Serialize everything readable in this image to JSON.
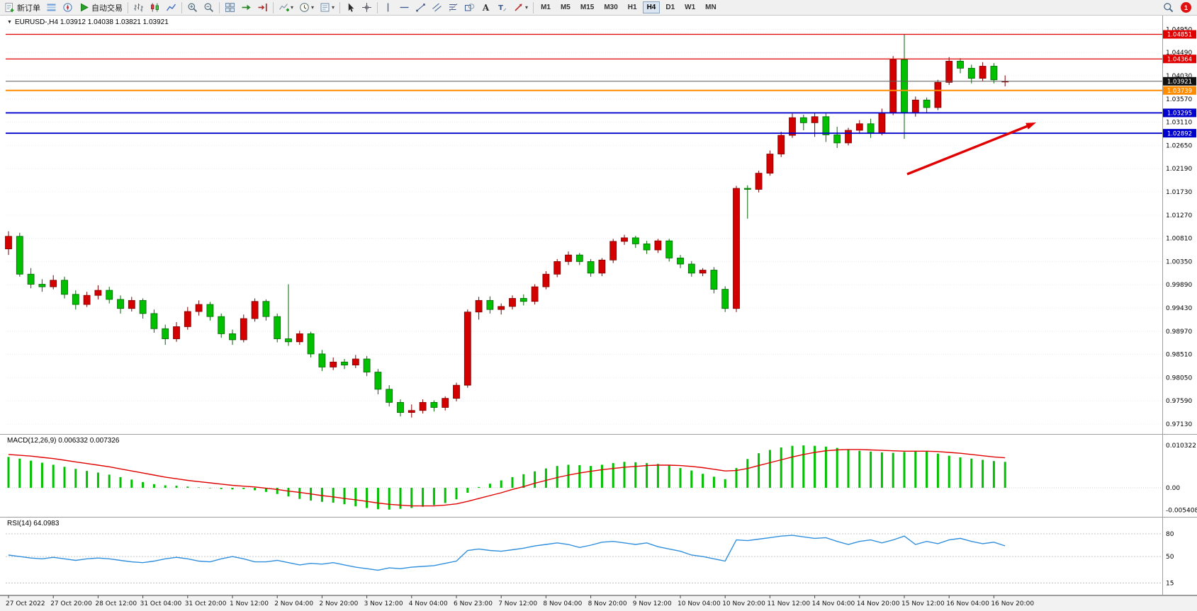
{
  "window": {
    "app": "MetaTrader 4"
  },
  "toolbar": {
    "groups": [
      {
        "buttons": [
          {
            "name": "new-order",
            "icon": "new-order",
            "label": "新订单"
          },
          {
            "name": "market-watch",
            "icon": "market-watch"
          },
          {
            "name": "navigator",
            "icon": "navigator"
          },
          {
            "name": "autotrading",
            "icon": "autotrading",
            "label": "自动交易"
          }
        ]
      },
      {
        "buttons": [
          {
            "name": "chart-bars",
            "icon": "chart-bars"
          },
          {
            "name": "chart-candles",
            "icon": "chart-candles"
          },
          {
            "name": "chart-line",
            "icon": "chart-line"
          }
        ]
      },
      {
        "buttons": [
          {
            "name": "zoom-in",
            "icon": "zoom-in"
          },
          {
            "name": "zoom-out",
            "icon": "zoom-out"
          }
        ]
      },
      {
        "buttons": [
          {
            "name": "tile-windows",
            "icon": "tile-windows"
          },
          {
            "name": "auto-scroll",
            "icon": "auto-scroll"
          },
          {
            "name": "chart-shift",
            "icon": "chart-shift"
          }
        ]
      },
      {
        "buttons": [
          {
            "name": "indicators",
            "icon": "indicators",
            "caret": true
          },
          {
            "name": "periods",
            "icon": "periods",
            "caret": true
          },
          {
            "name": "templates",
            "icon": "templates",
            "caret": true
          }
        ]
      },
      {
        "buttons": [
          {
            "name": "cursor",
            "icon": "cursor"
          },
          {
            "name": "crosshair",
            "icon": "crosshair"
          }
        ]
      },
      {
        "buttons": [
          {
            "name": "vertical-line",
            "icon": "vline"
          },
          {
            "name": "horizontal-line",
            "icon": "hline"
          },
          {
            "name": "trendline",
            "icon": "trendline"
          },
          {
            "name": "equidistant-channel",
            "icon": "channel"
          },
          {
            "name": "fibonacci",
            "icon": "fibonacci"
          },
          {
            "name": "shapes",
            "icon": "shapes"
          },
          {
            "name": "text",
            "icon": "text-a"
          },
          {
            "name": "text-label",
            "icon": "label-t"
          },
          {
            "name": "arrows",
            "icon": "arrows-tool",
            "caret": true
          }
        ]
      }
    ],
    "timeframes": {
      "labels": [
        "M1",
        "M5",
        "M15",
        "M30",
        "H1",
        "H4",
        "D1",
        "W1",
        "MN"
      ],
      "active": "H4"
    },
    "right": {
      "search_icon": "search",
      "notification_count": "1"
    }
  },
  "chart": {
    "ohlc_line": "EURUSD-,H4  1.03912 1.04038 1.03821 1.03921",
    "macd_label": "MACD(12,26,9) 0.006332 0.007326",
    "rsi_label": "RSI(14) 64.0983"
  },
  "chart_data": {
    "type": "candlestick",
    "symbol": "EURUSD-",
    "timeframe": "H4",
    "title": "EURUSD-,H4",
    "ohlc_info": {
      "open": "1.03912",
      "high": "1.04038",
      "low": "1.03821",
      "close": "1.03921"
    },
    "current_price": "1.03921",
    "bull_color": "#d40000",
    "bear_color": "#00c000",
    "candles": [
      [
        1.006,
        1.0095,
        1.0048,
        1.0085
      ],
      [
        1.0085,
        1.0092,
        1.0005,
        1.001
      ],
      [
        1.001,
        1.0022,
        0.9982,
        0.999
      ],
      [
        0.999,
        1.0,
        0.9975,
        0.9985
      ],
      [
        0.9985,
        1.0008,
        0.998,
        0.9998
      ],
      [
        0.9998,
        1.0005,
        0.9962,
        0.997
      ],
      [
        0.997,
        0.9978,
        0.994,
        0.995
      ],
      [
        0.995,
        0.9975,
        0.9945,
        0.9968
      ],
      [
        0.9968,
        0.9988,
        0.996,
        0.9978
      ],
      [
        0.9978,
        0.9985,
        0.9952,
        0.996
      ],
      [
        0.996,
        0.9968,
        0.9932,
        0.9942
      ],
      [
        0.9942,
        0.9965,
        0.9936,
        0.9958
      ],
      [
        0.9958,
        0.9962,
        0.9922,
        0.9932
      ],
      [
        0.9932,
        0.994,
        0.9894,
        0.9902
      ],
      [
        0.9902,
        0.991,
        0.987,
        0.9882
      ],
      [
        0.9882,
        0.9915,
        0.9876,
        0.9906
      ],
      [
        0.9906,
        0.9945,
        0.99,
        0.9936
      ],
      [
        0.9936,
        0.9958,
        0.9928,
        0.995
      ],
      [
        0.995,
        0.9955,
        0.9918,
        0.9926
      ],
      [
        0.9926,
        0.9932,
        0.9884,
        0.9892
      ],
      [
        0.9892,
        0.99,
        0.987,
        0.988
      ],
      [
        0.988,
        0.993,
        0.9875,
        0.9922
      ],
      [
        0.9922,
        0.9962,
        0.9916,
        0.9956
      ],
      [
        0.9956,
        0.996,
        0.9918,
        0.9926
      ],
      [
        0.9926,
        0.9932,
        0.9875,
        0.9882
      ],
      [
        0.9882,
        0.999,
        0.9868,
        0.9876
      ],
      [
        0.9876,
        0.9898,
        0.987,
        0.9892
      ],
      [
        0.9892,
        0.9896,
        0.9845,
        0.9852
      ],
      [
        0.9852,
        0.986,
        0.9818,
        0.9826
      ],
      [
        0.9826,
        0.9845,
        0.982,
        0.9836
      ],
      [
        0.9836,
        0.9842,
        0.9822,
        0.983
      ],
      [
        0.983,
        0.985,
        0.9824,
        0.9842
      ],
      [
        0.9842,
        0.9848,
        0.9808,
        0.9816
      ],
      [
        0.9816,
        0.9822,
        0.9772,
        0.9782
      ],
      [
        0.9782,
        0.979,
        0.9748,
        0.9756
      ],
      [
        0.9756,
        0.9762,
        0.9728,
        0.9736
      ],
      [
        0.9736,
        0.9752,
        0.9726,
        0.974
      ],
      [
        0.974,
        0.9762,
        0.9734,
        0.9756
      ],
      [
        0.9756,
        0.976,
        0.9738,
        0.9746
      ],
      [
        0.9746,
        0.9768,
        0.974,
        0.9764
      ],
      [
        0.9764,
        0.9795,
        0.9758,
        0.979
      ],
      [
        0.979,
        0.994,
        0.9785,
        0.9935
      ],
      [
        0.9935,
        0.9965,
        0.992,
        0.9958
      ],
      [
        0.9958,
        0.9966,
        0.9932,
        0.994
      ],
      [
        0.994,
        0.9952,
        0.993,
        0.9946
      ],
      [
        0.9946,
        0.9968,
        0.994,
        0.9962
      ],
      [
        0.9962,
        0.997,
        0.9948,
        0.9956
      ],
      [
        0.9956,
        0.999,
        0.995,
        0.9985
      ],
      [
        0.9985,
        1.0016,
        0.998,
        1.001
      ],
      [
        1.001,
        1.004,
        1.0004,
        1.0035
      ],
      [
        1.0035,
        1.0055,
        1.0028,
        1.0048
      ],
      [
        1.0048,
        1.0052,
        1.0028,
        1.0035
      ],
      [
        1.0035,
        1.004,
        1.0005,
        1.0012
      ],
      [
        1.0012,
        1.0042,
        1.0006,
        1.0038
      ],
      [
        1.0038,
        1.008,
        1.0032,
        1.0075
      ],
      [
        1.0075,
        1.0088,
        1.0068,
        1.0082
      ],
      [
        1.0082,
        1.0086,
        1.0062,
        1.007
      ],
      [
        1.007,
        1.0076,
        1.005,
        1.0058
      ],
      [
        1.0058,
        1.008,
        1.0052,
        1.0076
      ],
      [
        1.0076,
        1.008,
        1.0035,
        1.0042
      ],
      [
        1.0042,
        1.0048,
        1.0022,
        1.003
      ],
      [
        1.003,
        1.0036,
        1.0005,
        1.0012
      ],
      [
        1.0012,
        1.0022,
        1.0006,
        1.0018
      ],
      [
        1.0018,
        1.0024,
        0.9972,
        0.998
      ],
      [
        0.998,
        0.9986,
        0.9935,
        0.9942
      ],
      [
        0.9942,
        1.0185,
        0.9935,
        1.018
      ],
      [
        1.018,
        1.0186,
        1.012,
        1.0178
      ],
      [
        1.0178,
        1.0215,
        1.0172,
        1.021
      ],
      [
        1.021,
        1.0255,
        1.0205,
        1.0248
      ],
      [
        1.0248,
        1.0292,
        1.0242,
        1.0285
      ],
      [
        1.0285,
        1.0328,
        1.028,
        1.032
      ],
      [
        1.032,
        1.0326,
        1.0295,
        1.031
      ],
      [
        1.031,
        1.033,
        1.0282,
        1.0322
      ],
      [
        1.0322,
        1.0328,
        1.0272,
        1.0286
      ],
      [
        1.0286,
        1.0302,
        1.026,
        1.027
      ],
      [
        1.027,
        1.03,
        1.0265,
        1.0295
      ],
      [
        1.0295,
        1.0315,
        1.0288,
        1.0308
      ],
      [
        1.0308,
        1.0318,
        1.028,
        1.029
      ],
      [
        1.029,
        1.0338,
        1.0285,
        1.033
      ],
      [
        1.033,
        1.0442,
        1.0325,
        1.0435
      ],
      [
        1.0435,
        1.0485,
        1.0278,
        1.033
      ],
      [
        1.033,
        1.0362,
        1.0322,
        1.0355
      ],
      [
        1.0355,
        1.036,
        1.033,
        1.034
      ],
      [
        1.034,
        1.0395,
        1.0335,
        1.039
      ],
      [
        1.039,
        1.044,
        1.0385,
        1.0432
      ],
      [
        1.0432,
        1.0438,
        1.0408,
        1.0418
      ],
      [
        1.0418,
        1.0425,
        1.0388,
        1.0398
      ],
      [
        1.0398,
        1.043,
        1.0392,
        1.0422
      ],
      [
        1.0422,
        1.0428,
        1.0388,
        1.0395
      ],
      [
        1.03912,
        1.04038,
        1.03821,
        1.03921
      ]
    ],
    "time_labels": [
      "27 Oct 2022",
      "27 Oct 20:00",
      "28 Oct 12:00",
      "31 Oct 04:00",
      "31 Oct 20:00",
      "1 Nov 12:00",
      "2 Nov 04:00",
      "2 Nov 20:00",
      "3 Nov 12:00",
      "4 Nov 04:00",
      "6 Nov 23:00",
      "7 Nov 12:00",
      "8 Nov 04:00",
      "8 Nov 20:00",
      "9 Nov 12:00",
      "10 Nov 04:00",
      "10 Nov 20:00",
      "11 Nov 12:00",
      "14 Nov 04:00",
      "14 Nov 20:00",
      "15 Nov 12:00",
      "16 Nov 04:00",
      "16 Nov 20:00"
    ],
    "price_axis": {
      "labels": [
        "1.04950",
        "1.04490",
        "1.04030",
        "1.03570",
        "1.03110",
        "1.02650",
        "1.02190",
        "1.01730",
        "1.01270",
        "1.00810",
        "1.00350",
        "0.99890",
        "0.99430",
        "0.98970",
        "0.98510",
        "0.98050",
        "0.97590",
        "0.97130"
      ]
    },
    "levels": [
      {
        "value": "1.04851",
        "color": "#e00000",
        "width": 1.3,
        "type": "resistance"
      },
      {
        "value": "1.04364",
        "color": "#e00000",
        "width": 1.3,
        "type": "resistance"
      },
      {
        "value": "1.03921",
        "color": "#5a5a5a",
        "badge_color": "#111111",
        "width": 1,
        "type": "bid"
      },
      {
        "value": "1.03739",
        "color": "#ff8c00",
        "width": 2,
        "type": "level"
      },
      {
        "value": "1.03295",
        "color": "#0000cc",
        "width": 1.8,
        "type": "support"
      },
      {
        "value": "1.02892",
        "color": "#0000cc",
        "width": 1.8,
        "type": "support"
      }
    ],
    "indicators": [
      {
        "name": "MACD",
        "params": "12,26,9",
        "label": "MACD(12,26,9) 0.006332 0.007326",
        "current_values": [
          "0.006332",
          "0.007326"
        ],
        "histogram_color": "#00c000",
        "signal_color": "#e00000",
        "scale": [
          {
            "label": "0.010322",
            "value": 0.010322
          },
          {
            "label": "0.00",
            "value": 0
          },
          {
            "label": "-0.005408",
            "value": -0.005408
          }
        ],
        "histogram": [
          0.0075,
          0.0071,
          0.0066,
          0.0061,
          0.0056,
          0.0051,
          0.0046,
          0.0041,
          0.0037,
          0.0032,
          0.0026,
          0.002,
          0.0014,
          0.0009,
          0.0006,
          0.0005,
          0.0003,
          0.0001,
          -0.0001,
          -0.0003,
          -0.0004,
          -0.0003,
          -0.0006,
          -0.001,
          -0.0015,
          -0.0021,
          -0.0027,
          -0.0031,
          -0.0034,
          -0.0036,
          -0.004,
          -0.0045,
          -0.0049,
          -0.0052,
          -0.0053,
          -0.0051,
          -0.0049,
          -0.0046,
          -0.0042,
          -0.0037,
          -0.0028,
          -0.0012,
          0.0002,
          0.001,
          0.0018,
          0.0026,
          0.0033,
          0.004,
          0.0047,
          0.0053,
          0.0056,
          0.0055,
          0.0053,
          0.0056,
          0.006,
          0.0063,
          0.0062,
          0.006,
          0.0058,
          0.0054,
          0.0048,
          0.0042,
          0.0034,
          0.0027,
          0.0021,
          0.0048,
          0.007,
          0.0084,
          0.0092,
          0.0098,
          0.0102,
          0.0103,
          0.0102,
          0.01,
          0.0097,
          0.0093,
          0.009,
          0.0088,
          0.0086,
          0.0085,
          0.0087,
          0.009,
          0.0088,
          0.0083,
          0.0078,
          0.0074,
          0.0071,
          0.0068,
          0.0065,
          0.0063
        ],
        "signal": [
          0.0081,
          0.0079,
          0.0077,
          0.0074,
          0.0071,
          0.0067,
          0.0063,
          0.0059,
          0.0055,
          0.0051,
          0.0046,
          0.0041,
          0.0036,
          0.0031,
          0.0026,
          0.0022,
          0.0018,
          0.0015,
          0.0012,
          0.0009,
          0.0006,
          0.0004,
          0.0002,
          -0.0001,
          -0.0004,
          -0.0008,
          -0.0011,
          -0.0015,
          -0.0019,
          -0.0022,
          -0.0026,
          -0.0029,
          -0.0033,
          -0.0037,
          -0.004,
          -0.0042,
          -0.0044,
          -0.0044,
          -0.0044,
          -0.0042,
          -0.0039,
          -0.0033,
          -0.0026,
          -0.0019,
          -0.0012,
          -0.0004,
          0.0003,
          0.0011,
          0.0018,
          0.0025,
          0.0031,
          0.0036,
          0.004,
          0.0044,
          0.0047,
          0.005,
          0.0052,
          0.0054,
          0.0055,
          0.0055,
          0.0054,
          0.0052,
          0.0049,
          0.0045,
          0.0041,
          0.0042,
          0.0047,
          0.0054,
          0.0061,
          0.0068,
          0.0075,
          0.0081,
          0.0086,
          0.009,
          0.0092,
          0.0093,
          0.0093,
          0.0092,
          0.0091,
          0.009,
          0.0089,
          0.0089,
          0.0089,
          0.0088,
          0.0086,
          0.0084,
          0.0081,
          0.0078,
          0.0075,
          0.0073
        ]
      },
      {
        "name": "RSI",
        "params": "14",
        "label": "RSI(14) 64.0983",
        "current_value": "64.0983",
        "line_color": "#2f8fdd",
        "scale": [
          {
            "label": "80",
            "value": 80
          },
          {
            "label": "50",
            "value": 50
          },
          {
            "label": "15",
            "value": 15
          }
        ],
        "values": [
          52,
          50,
          48,
          47,
          49,
          47,
          45,
          47,
          48,
          47,
          45,
          43,
          42,
          44,
          47,
          49,
          47,
          44,
          43,
          47,
          50,
          47,
          43,
          43,
          45,
          42,
          39,
          41,
          40,
          42,
          39,
          36,
          34,
          32,
          35,
          34,
          36,
          37,
          38,
          41,
          44,
          58,
          60,
          58,
          57,
          59,
          61,
          64,
          66,
          68,
          66,
          62,
          65,
          69,
          70,
          68,
          66,
          68,
          63,
          60,
          57,
          52,
          50,
          47,
          44,
          72,
          71,
          73,
          75,
          77,
          78,
          76,
          74,
          75,
          70,
          66,
          70,
          72,
          68,
          72,
          77,
          66,
          70,
          67,
          72,
          74,
          70,
          67,
          69,
          64.1
        ]
      }
    ],
    "annotation_arrow": {
      "color": "#e10000",
      "direction": "up-right"
    }
  }
}
